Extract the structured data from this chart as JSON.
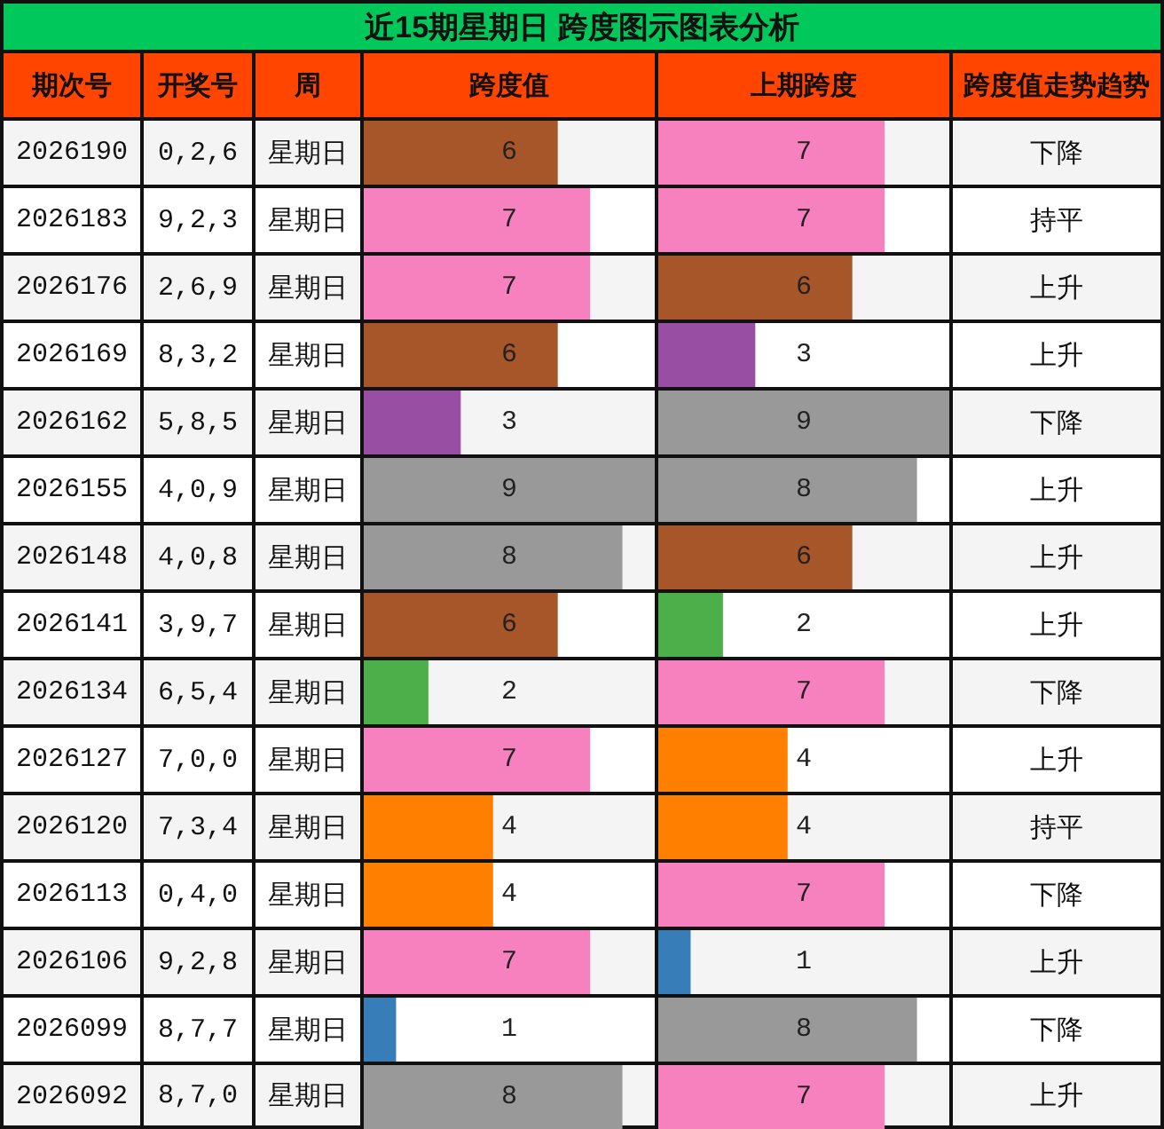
{
  "chart_data": [
    {
      "type": "bar",
      "orientation": "horizontal",
      "title": "近15期星期日 跨度图示图表分析",
      "xlabel": "跨度值",
      "ylabel": "期次号",
      "categories": [
        "2026190",
        "2026183",
        "2026176",
        "2026169",
        "2026162",
        "2026155",
        "2026148",
        "2026141",
        "2026134",
        "2026127",
        "2026120",
        "2026113",
        "2026106",
        "2026099",
        "2026092"
      ],
      "values": [
        6,
        7,
        7,
        6,
        3,
        9,
        8,
        6,
        2,
        7,
        4,
        4,
        7,
        1,
        8
      ],
      "colors": [
        "#a65628",
        "#f781bf",
        "#f781bf",
        "#a65628",
        "#984ea3",
        "#999999",
        "#999999",
        "#a65628",
        "#4daf4a",
        "#f781bf",
        "#ff7f00",
        "#ff7f00",
        "#f781bf",
        "#377eb8",
        "#999999"
      ],
      "xlim": [
        0,
        9
      ],
      "data_labels": true,
      "tick_labels": "y"
    },
    {
      "type": "bar",
      "orientation": "horizontal",
      "xlabel": "上期跨度",
      "categories": [
        "2026190",
        "2026183",
        "2026176",
        "2026169",
        "2026162",
        "2026155",
        "2026148",
        "2026141",
        "2026134",
        "2026127",
        "2026120",
        "2026113",
        "2026106",
        "2026099",
        "2026092"
      ],
      "values": [
        7,
        7,
        6,
        3,
        9,
        8,
        6,
        2,
        7,
        4,
        4,
        7,
        1,
        8,
        7
      ],
      "colors": [
        "#f781bf",
        "#f781bf",
        "#a65628",
        "#984ea3",
        "#999999",
        "#999999",
        "#a65628",
        "#4daf4a",
        "#f781bf",
        "#ff7f00",
        "#ff7f00",
        "#f781bf",
        "#377eb8",
        "#999999",
        "#f781bf"
      ],
      "xlim": [
        0,
        9
      ],
      "data_labels": true,
      "tick_labels": false
    },
    {
      "type": "other",
      "annotations": [
        "开奖号",
        "周",
        "0,2,6",
        "星期日",
        "9,2,3",
        "星期日",
        "2,6,9",
        "星期日",
        "8,3,2",
        "星期日",
        "5,8,5",
        "星期日",
        "4,0,9",
        "星期日",
        "4,0,8",
        "星期日",
        "3,9,7",
        "星期日",
        "6,5,4",
        "星期日",
        "7,0,0",
        "星期日",
        "7,3,4",
        "星期日",
        "0,4,0",
        "星期日",
        "9,2,8",
        "星期日",
        "8,7,7",
        "星期日",
        "8,7,0",
        "星期日"
      ]
    },
    {
      "type": "other",
      "annotations": [
        "跨度值走势趋势",
        "下降",
        "持平",
        "上升",
        "上升",
        "下降",
        "上升",
        "上升",
        "上升",
        "下降",
        "上升",
        "持平",
        "下降",
        "上升",
        "下降",
        "上升"
      ]
    }
  ]
}
